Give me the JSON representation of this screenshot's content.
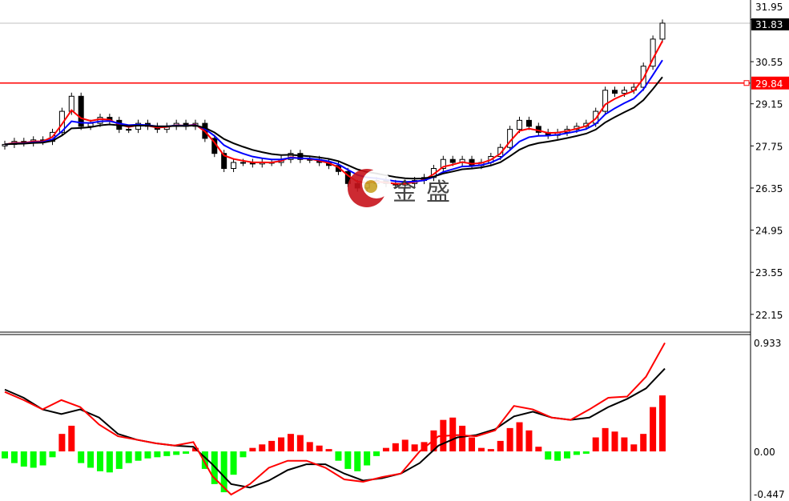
{
  "watermark": {
    "text": "金盛"
  },
  "price_lines": {
    "current": "31.83",
    "current_hidden_tick": "31.95",
    "level": "29.84",
    "level_color": "#ff0000"
  },
  "chart_data": [
    {
      "type": "candlestick",
      "ylim": [
        21.56,
        32.6
      ],
      "y_ticks": [
        "30.55",
        "29.15",
        "27.75",
        "26.35",
        "24.95",
        "23.55",
        "22.15"
      ],
      "grid": false,
      "colors": {
        "up": "#000000",
        "down": "#000000",
        "ma_fast": "#ff0000",
        "ma_mid": "#0000ff",
        "ma_slow": "#000000"
      },
      "closes": [
        27.8,
        27.9,
        27.85,
        27.95,
        27.9,
        28.2,
        28.9,
        29.4,
        28.4,
        28.5,
        28.7,
        28.6,
        28.3,
        28.3,
        28.5,
        28.4,
        28.3,
        28.4,
        28.5,
        28.4,
        28.5,
        28.0,
        27.5,
        27.0,
        27.2,
        27.2,
        27.15,
        27.2,
        27.2,
        27.3,
        27.5,
        27.3,
        27.3,
        27.2,
        27.1,
        26.9,
        26.5,
        26.35,
        26.5,
        26.6,
        26.5,
        26.45,
        26.5,
        26.6,
        26.7,
        27.0,
        27.3,
        27.2,
        27.3,
        27.1,
        27.2,
        27.4,
        27.7,
        28.3,
        28.6,
        28.4,
        28.2,
        28.1,
        28.2,
        28.3,
        28.4,
        28.5,
        28.9,
        29.6,
        29.5,
        29.6,
        29.7,
        30.4,
        31.3,
        31.83
      ]
    },
    {
      "type": "macd",
      "ylim": [
        -0.447,
        0.933
      ],
      "y_ticks": [
        "0.933",
        "0.00",
        "-0.447"
      ],
      "colors": {
        "hist_up": "#ff0000",
        "hist_down": "#00ff00",
        "fast": "#ff0000",
        "slow": "#000000"
      },
      "histogram": [
        -0.06,
        -0.1,
        -0.13,
        -0.14,
        -0.12,
        -0.05,
        0.15,
        0.22,
        -0.1,
        -0.14,
        -0.17,
        -0.18,
        -0.15,
        -0.1,
        -0.08,
        -0.06,
        -0.05,
        -0.04,
        -0.03,
        -0.02,
        0.03,
        -0.15,
        -0.28,
        -0.35,
        -0.2,
        -0.05,
        0.03,
        0.06,
        0.09,
        0.12,
        0.15,
        0.14,
        0.08,
        0.05,
        0.02,
        -0.08,
        -0.15,
        -0.17,
        -0.12,
        -0.04,
        0.03,
        0.07,
        0.1,
        0.06,
        0.08,
        0.18,
        0.27,
        0.29,
        0.22,
        0.12,
        0.03,
        0.02,
        0.09,
        0.2,
        0.25,
        0.18,
        0.04,
        -0.07,
        -0.08,
        -0.06,
        -0.03,
        -0.02,
        0.12,
        0.2,
        0.17,
        0.12,
        0.06,
        0.15,
        0.38,
        0.48
      ],
      "fast_line": [
        0.51,
        0.44,
        0.36,
        0.44,
        0.38,
        0.23,
        0.13,
        0.1,
        0.07,
        0.05,
        0.08,
        -0.21,
        -0.37,
        -0.28,
        -0.14,
        -0.08,
        -0.08,
        -0.14,
        -0.24,
        -0.26,
        -0.22,
        -0.19,
        0.0,
        0.13,
        0.14,
        0.13,
        0.18,
        0.39,
        0.36,
        0.29,
        0.27,
        0.36,
        0.46,
        0.47,
        0.64,
        0.93
      ],
      "slow_line": [
        0.53,
        0.46,
        0.36,
        0.32,
        0.36,
        0.29,
        0.15,
        0.1,
        0.07,
        0.05,
        0.04,
        -0.11,
        -0.28,
        -0.31,
        -0.25,
        -0.16,
        -0.11,
        -0.11,
        -0.19,
        -0.25,
        -0.23,
        -0.19,
        -0.1,
        0.05,
        0.12,
        0.14,
        0.19,
        0.3,
        0.34,
        0.29,
        0.27,
        0.29,
        0.38,
        0.45,
        0.54,
        0.71
      ]
    }
  ]
}
